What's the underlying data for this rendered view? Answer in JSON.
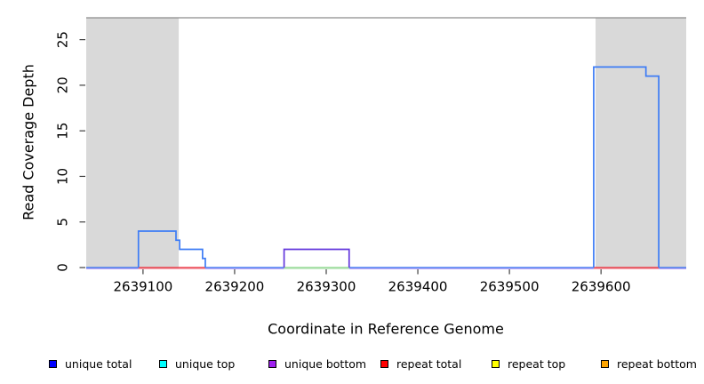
{
  "chart_data": {
    "type": "line",
    "subtype": "step-coverage",
    "title": "",
    "xlabel": "Coordinate in Reference Genome",
    "ylabel": "Read Coverage Depth",
    "xlim": [
      2639038,
      2639693
    ],
    "ylim": [
      0,
      27.4
    ],
    "x_ticks": [
      "2639100",
      "2639200",
      "2639300",
      "2639400",
      "2639500",
      "2639600"
    ],
    "x_tick_values": [
      2639100,
      2639200,
      2639300,
      2639400,
      2639500,
      2639600
    ],
    "y_ticks": [
      "0",
      "5",
      "10",
      "15",
      "20",
      "25"
    ],
    "y_tick_values": [
      0,
      5,
      10,
      15,
      20,
      25
    ],
    "grid": false,
    "background": "#FFFFFF",
    "shade_color": "#D9D9D9",
    "top_boundary_line": {
      "y": 27.4,
      "color": "#8C8C8C"
    },
    "shaded_regions": [
      {
        "name": "shaded-region-left",
        "from": 2639038,
        "to": 2639139
      },
      {
        "name": "shaded-region-right",
        "from": 2639594,
        "to": 2639693
      }
    ],
    "series": [
      {
        "name": "unique total",
        "legend_color": "#0000FF",
        "line_color": "#3D7CF5",
        "runs": [
          [
            2639038,
            0
          ],
          [
            2639095,
            4
          ],
          [
            2639136,
            3
          ],
          [
            2639140,
            2
          ],
          [
            2639165,
            1
          ],
          [
            2639168,
            0
          ],
          [
            2639592,
            22
          ],
          [
            2639649,
            21
          ],
          [
            2639663,
            0
          ]
        ]
      },
      {
        "name": "unique top",
        "legend_color": "#00FFFF",
        "line_color": "#00FFFF",
        "runs": [
          [
            2639038,
            0
          ]
        ]
      },
      {
        "name": "unique bottom",
        "legend_color": "#A020F0",
        "line_color": "#6438DC",
        "runs": [
          [
            2639038,
            0
          ],
          [
            2639254,
            2
          ],
          [
            2639325,
            0
          ]
        ]
      },
      {
        "name": "repeat total",
        "legend_color": "#FF0000",
        "line_color": "#EA3B47",
        "runs": [
          [
            2639038,
            0
          ]
        ]
      },
      {
        "name": "repeat top",
        "legend_color": "#FFFF00",
        "line_color": "#FFFF00",
        "runs": [
          [
            2639038,
            0
          ]
        ]
      },
      {
        "name": "repeat bottom",
        "legend_color": "#FFA500",
        "line_color": "#FFA500",
        "runs": [
          [
            2639038,
            0
          ]
        ]
      }
    ],
    "baseline_segments": [
      {
        "from": 2639038,
        "to": 2639095,
        "color": "#4577F0",
        "under_color": "#BCA6F7"
      },
      {
        "from": 2639095,
        "to": 2639168,
        "color": "#EA3B47",
        "under_color": "#F6A9B4"
      },
      {
        "from": 2639168,
        "to": 2639254,
        "color": "#4577F0",
        "under_color": "#BCA6F7"
      },
      {
        "from": 2639254,
        "to": 2639325,
        "color": "#8FD78F",
        "under_color": "#C9EBC9"
      },
      {
        "from": 2639325,
        "to": 2639592,
        "color": "#4577F0",
        "under_color": "#BCA6F7"
      },
      {
        "from": 2639592,
        "to": 2639663,
        "color": "#EA3B47",
        "under_color": "#F6A9B4"
      },
      {
        "from": 2639663,
        "to": 2639693,
        "color": "#4577F0",
        "under_color": "#BCA6F7"
      }
    ],
    "legend_position": "bottom"
  }
}
